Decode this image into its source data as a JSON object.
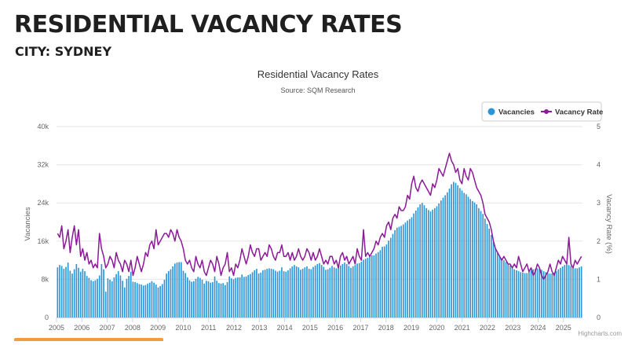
{
  "page": {
    "title": "RESIDENTIAL VACANCY RATES",
    "city": "CITY: SYDNEY"
  },
  "colors": {
    "bar": "#2b95d6",
    "line": "#8a1a96",
    "grid": "#e6e6e6",
    "accent": "#f39c3d"
  },
  "chart_data": {
    "type": "bar+line",
    "title": "Residential Vacancy Rates",
    "subtitle": "Source: SQM Research",
    "xlabel": "",
    "ylabel": "Vacancies",
    "y2label": "Vacancy Rate (%)",
    "ylim": [
      0,
      40000
    ],
    "y2lim": [
      0,
      5
    ],
    "y_ticks": [
      "0",
      "8k",
      "16k",
      "24k",
      "32k",
      "40k"
    ],
    "y2_ticks": [
      "0",
      "1",
      "2",
      "3",
      "4",
      "5"
    ],
    "x_ticks": [
      "2005",
      "2006",
      "2007",
      "2008",
      "2009",
      "2010",
      "2011",
      "2012",
      "2013",
      "2014",
      "2015",
      "2016",
      "2017",
      "2018",
      "2019",
      "2020",
      "2021",
      "2022",
      "2023",
      "2024",
      "2025"
    ],
    "x_range": [
      2005.0,
      2025.75
    ],
    "legend": [
      {
        "name": "Vacancies",
        "marker": "circle"
      },
      {
        "name": "Vacancy Rate",
        "marker": "line-dot"
      }
    ],
    "credit": "Highcharts.com",
    "series_vacancies_monthly": [
      10500,
      11000,
      10800,
      10200,
      10600,
      11500,
      9800,
      9200,
      10100,
      11200,
      10400,
      9600,
      10200,
      9700,
      8700,
      8300,
      7800,
      7600,
      7800,
      8100,
      8800,
      11200,
      10100,
      5400,
      8200,
      7900,
      7600,
      8400,
      9100,
      9700,
      8800,
      7700,
      6300,
      8100,
      8700,
      9600,
      7500,
      7400,
      7200,
      7000,
      6900,
      6700,
      6800,
      7100,
      7300,
      7600,
      7300,
      6900,
      6300,
      6600,
      7000,
      7900,
      9200,
      9700,
      10100,
      10700,
      11300,
      11500,
      11600,
      11600,
      9800,
      9300,
      8400,
      7800,
      7500,
      7600,
      8100,
      8500,
      8300,
      7900,
      7100,
      7700,
      7600,
      7300,
      7400,
      8600,
      7700,
      7200,
      7100,
      7200,
      6800,
      7400,
      8600,
      8200,
      8000,
      8300,
      8400,
      8400,
      9000,
      8500,
      8600,
      8900,
      9100,
      9500,
      9900,
      10200,
      9200,
      9400,
      9900,
      10000,
      10200,
      10300,
      10200,
      10100,
      9800,
      9600,
      9800,
      10500,
      9700,
      9600,
      9900,
      10300,
      10700,
      11000,
      10700,
      10500,
      10000,
      10200,
      10500,
      10700,
      10200,
      10100,
      10600,
      10900,
      11200,
      11400,
      11000,
      10600,
      10000,
      10100,
      10400,
      10800,
      10500,
      10300,
      10600,
      10900,
      11200,
      11500,
      11200,
      10800,
      10400,
      10700,
      11000,
      11300,
      11400,
      11700,
      12100,
      12300,
      12500,
      12900,
      13000,
      13000,
      13400,
      13700,
      14100,
      14800,
      14900,
      15300,
      16100,
      16700,
      17500,
      18300,
      18800,
      19000,
      19200,
      19500,
      19900,
      20300,
      20600,
      21000,
      21800,
      22400,
      23100,
      23700,
      24000,
      23500,
      22900,
      22500,
      22200,
      22600,
      22900,
      23300,
      23900,
      24500,
      25100,
      25600,
      26200,
      27000,
      27900,
      28400,
      28200,
      27700,
      27100,
      26600,
      26100,
      25800,
      25300,
      24800,
      24400,
      24100,
      23700,
      22900,
      22300,
      21700,
      20700,
      19600,
      18600,
      17300,
      15800,
      14500,
      13500,
      12900,
      12400,
      12000,
      11600,
      11200,
      10900,
      10500,
      10100,
      9900,
      9700,
      9500,
      9400,
      9300,
      9300,
      9600,
      9800,
      10100,
      10200,
      10300,
      10200,
      10000,
      9700,
      9500,
      9300,
      9200,
      9200,
      9400,
      9700,
      10100,
      10400,
      10700,
      11000,
      11100,
      11000,
      10800,
      10500,
      10300,
      10300,
      10500,
      10700
    ],
    "series_vacancy_rate_monthly": [
      2.2,
      2.1,
      2.4,
      1.8,
      2.0,
      2.3,
      1.7,
      2.1,
      2.4,
      1.9,
      2.3,
      1.6,
      1.8,
      1.5,
      1.7,
      1.4,
      1.5,
      1.3,
      1.4,
      1.3,
      2.2,
      1.8,
      1.6,
      1.3,
      1.4,
      1.6,
      1.5,
      1.3,
      1.7,
      1.5,
      1.4,
      1.2,
      1.5,
      1.4,
      1.2,
      1.5,
      1.1,
      1.3,
      1.6,
      1.4,
      1.2,
      1.4,
      1.7,
      1.6,
      1.9,
      2.0,
      1.8,
      2.3,
      1.9,
      2.0,
      2.1,
      2.2,
      2.2,
      2.1,
      2.3,
      2.2,
      2.0,
      2.3,
      2.1,
      2.0,
      1.8,
      1.5,
      1.4,
      1.5,
      1.3,
      1.2,
      1.6,
      1.4,
      1.3,
      1.5,
      1.2,
      1.1,
      1.3,
      1.5,
      1.4,
      1.2,
      1.6,
      1.4,
      1.1,
      1.3,
      1.4,
      1.7,
      1.2,
      1.3,
      1.1,
      1.4,
      1.3,
      1.5,
      1.8,
      1.6,
      1.4,
      1.6,
      1.9,
      1.7,
      1.6,
      1.8,
      1.8,
      1.5,
      1.6,
      1.7,
      1.6,
      1.9,
      1.8,
      1.6,
      1.5,
      1.7,
      1.7,
      1.9,
      1.6,
      1.6,
      1.7,
      1.5,
      1.7,
      1.5,
      1.6,
      1.8,
      1.6,
      1.5,
      1.6,
      1.8,
      1.7,
      1.5,
      1.7,
      1.5,
      1.6,
      1.8,
      1.6,
      1.4,
      1.5,
      1.4,
      1.6,
      1.6,
      1.4,
      1.5,
      1.3,
      1.6,
      1.7,
      1.5,
      1.6,
      1.4,
      1.5,
      1.6,
      1.4,
      1.8,
      1.6,
      1.5,
      2.3,
      1.6,
      1.7,
      1.6,
      1.7,
      1.8,
      2.0,
      1.9,
      2.1,
      2.2,
      2.1,
      2.4,
      2.5,
      2.3,
      2.6,
      2.7,
      2.6,
      2.9,
      2.8,
      2.8,
      2.9,
      3.2,
      3.1,
      3.5,
      3.7,
      3.4,
      3.3,
      3.5,
      3.6,
      3.5,
      3.4,
      3.3,
      3.2,
      3.5,
      3.4,
      3.6,
      3.9,
      3.8,
      3.7,
      3.9,
      4.1,
      4.3,
      4.1,
      4.0,
      3.8,
      3.9,
      3.6,
      3.5,
      3.9,
      3.7,
      3.6,
      3.9,
      3.8,
      3.6,
      3.4,
      3.3,
      3.2,
      3.0,
      2.7,
      2.6,
      2.5,
      2.3,
      2.0,
      1.8,
      1.7,
      1.6,
      1.5,
      1.6,
      1.5,
      1.4,
      1.4,
      1.3,
      1.4,
      1.3,
      1.6,
      1.4,
      1.2,
      1.3,
      1.4,
      1.2,
      1.3,
      1.1,
      1.2,
      1.4,
      1.3,
      1.1,
      1.0,
      1.1,
      1.2,
      1.4,
      1.2,
      1.1,
      1.3,
      1.5,
      1.4,
      1.6,
      1.5,
      1.4,
      2.1,
      1.4,
      1.3,
      1.5,
      1.4,
      1.5,
      1.6
    ]
  }
}
